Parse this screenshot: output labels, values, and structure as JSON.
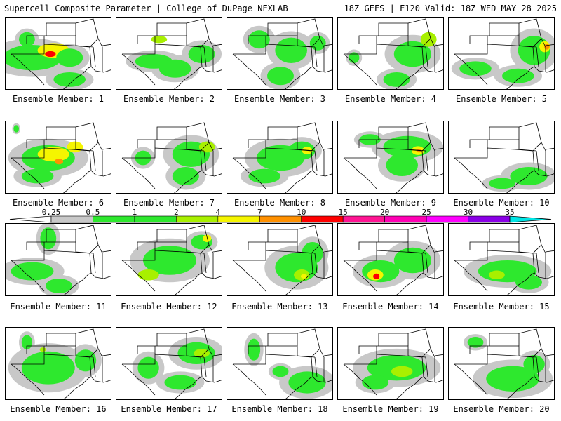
{
  "header": {
    "title": "Supercell Composite Parameter | College of DuPage NEXLAB",
    "run_info": "18Z GEFS | F120 Valid: 18Z WED MAY 28 2025"
  },
  "caption_prefix": "Ensemble Member: ",
  "members": [
    {
      "id": 1,
      "label": "Ensemble Member: 1",
      "blobs": [
        [
          0.25,
          0.55,
          0.55,
          0.35,
          "#2ee82e"
        ],
        [
          0.45,
          0.45,
          0.3,
          0.2,
          "#f5f500"
        ],
        [
          0.42,
          0.5,
          0.1,
          0.08,
          "#ff0000"
        ],
        [
          0.6,
          0.55,
          0.25,
          0.25,
          "#2ee82e"
        ],
        [
          0.2,
          0.3,
          0.15,
          0.2,
          "#2ee82e"
        ],
        [
          0.6,
          0.85,
          0.3,
          0.2,
          "#2ee82e"
        ]
      ]
    },
    {
      "id": 2,
      "label": "Ensemble Member: 2",
      "blobs": [
        [
          0.35,
          0.6,
          0.35,
          0.2,
          "#2ee82e"
        ],
        [
          0.55,
          0.7,
          0.3,
          0.25,
          "#2ee82e"
        ],
        [
          0.8,
          0.5,
          0.25,
          0.25,
          "#2ee82e"
        ],
        [
          0.4,
          0.3,
          0.15,
          0.1,
          "#a8f000"
        ]
      ]
    },
    {
      "id": 3,
      "label": "Ensemble Member: 3",
      "blobs": [
        [
          0.6,
          0.45,
          0.3,
          0.35,
          "#2ee82e"
        ],
        [
          0.5,
          0.8,
          0.25,
          0.25,
          "#2ee82e"
        ],
        [
          0.3,
          0.3,
          0.2,
          0.25,
          "#2ee82e"
        ],
        [
          0.85,
          0.35,
          0.15,
          0.2,
          "#2ee82e"
        ]
      ]
    },
    {
      "id": 4,
      "label": "Ensemble Member: 4",
      "blobs": [
        [
          0.7,
          0.5,
          0.35,
          0.35,
          "#2ee82e"
        ],
        [
          0.55,
          0.85,
          0.25,
          0.2,
          "#2ee82e"
        ],
        [
          0.85,
          0.3,
          0.15,
          0.2,
          "#a8f000"
        ],
        [
          0.15,
          0.55,
          0.1,
          0.15,
          "#2ee82e"
        ]
      ]
    },
    {
      "id": 5,
      "label": "Ensemble Member: 5",
      "blobs": [
        [
          0.8,
          0.45,
          0.3,
          0.4,
          "#2ee82e"
        ],
        [
          0.9,
          0.4,
          0.1,
          0.15,
          "#f5f500"
        ],
        [
          0.92,
          0.4,
          0.05,
          0.08,
          "#ff9000"
        ],
        [
          0.65,
          0.8,
          0.3,
          0.2,
          "#2ee82e"
        ],
        [
          0.25,
          0.7,
          0.3,
          0.2,
          "#2ee82e"
        ]
      ]
    },
    {
      "id": 6,
      "label": "Ensemble Member: 6",
      "blobs": [
        [
          0.4,
          0.5,
          0.5,
          0.35,
          "#2ee82e"
        ],
        [
          0.45,
          0.45,
          0.3,
          0.2,
          "#f5f500"
        ],
        [
          0.5,
          0.55,
          0.08,
          0.08,
          "#ff9000"
        ],
        [
          0.65,
          0.35,
          0.15,
          0.15,
          "#f5f500"
        ],
        [
          0.3,
          0.75,
          0.3,
          0.2,
          "#2ee82e"
        ],
        [
          0.1,
          0.1,
          0.05,
          0.1,
          "#2ee82e"
        ]
      ]
    },
    {
      "id": 7,
      "label": "Ensemble Member: 7",
      "blobs": [
        [
          0.7,
          0.45,
          0.35,
          0.35,
          "#2ee82e"
        ],
        [
          0.65,
          0.75,
          0.25,
          0.25,
          "#2ee82e"
        ],
        [
          0.85,
          0.35,
          0.15,
          0.15,
          "#a8f000"
        ],
        [
          0.25,
          0.5,
          0.15,
          0.2,
          "#2ee82e"
        ]
      ]
    },
    {
      "id": 8,
      "label": "Ensemble Member: 8",
      "blobs": [
        [
          0.5,
          0.5,
          0.45,
          0.35,
          "#2ee82e"
        ],
        [
          0.7,
          0.4,
          0.25,
          0.25,
          "#2ee82e"
        ],
        [
          0.75,
          0.4,
          0.1,
          0.1,
          "#f5f500"
        ],
        [
          0.35,
          0.75,
          0.3,
          0.2,
          "#2ee82e"
        ]
      ]
    },
    {
      "id": 9,
      "label": "Ensemble Member: 9",
      "blobs": [
        [
          0.65,
          0.35,
          0.45,
          0.3,
          "#2ee82e"
        ],
        [
          0.75,
          0.4,
          0.12,
          0.12,
          "#f5f500"
        ],
        [
          0.76,
          0.4,
          0.05,
          0.05,
          "#ff9000"
        ],
        [
          0.6,
          0.6,
          0.3,
          0.3,
          "#2ee82e"
        ],
        [
          0.3,
          0.25,
          0.2,
          0.15,
          "#2ee82e"
        ]
      ]
    },
    {
      "id": 10,
      "label": "Ensemble Member: 10",
      "blobs": [
        [
          0.75,
          0.75,
          0.35,
          0.25,
          "#2ee82e"
        ],
        [
          0.5,
          0.85,
          0.25,
          0.15,
          "#2ee82e"
        ]
      ]
    },
    {
      "id": 11,
      "label": "Ensemble Member: 11",
      "blobs": [
        [
          0.25,
          0.65,
          0.4,
          0.25,
          "#2ee82e"
        ],
        [
          0.4,
          0.2,
          0.15,
          0.3,
          "#2ee82e"
        ],
        [
          0.5,
          0.85,
          0.25,
          0.2,
          "#2ee82e"
        ]
      ]
    },
    {
      "id": 12,
      "label": "Ensemble Member: 12",
      "blobs": [
        [
          0.5,
          0.5,
          0.5,
          0.4,
          "#2ee82e"
        ],
        [
          0.8,
          0.25,
          0.2,
          0.2,
          "#2ee82e"
        ],
        [
          0.85,
          0.2,
          0.08,
          0.1,
          "#f5f500"
        ],
        [
          0.3,
          0.7,
          0.2,
          0.15,
          "#a8f000"
        ]
      ]
    },
    {
      "id": 13,
      "label": "Ensemble Member: 13",
      "blobs": [
        [
          0.65,
          0.6,
          0.4,
          0.4,
          "#2ee82e"
        ],
        [
          0.7,
          0.7,
          0.15,
          0.15,
          "#a8f000"
        ],
        [
          0.72,
          0.72,
          0.06,
          0.06,
          "#f5f500"
        ],
        [
          0.8,
          0.4,
          0.2,
          0.3,
          "#2ee82e"
        ]
      ]
    },
    {
      "id": 14,
      "label": "Ensemble Member: 14",
      "blobs": [
        [
          0.4,
          0.65,
          0.35,
          0.3,
          "#2ee82e"
        ],
        [
          0.35,
          0.7,
          0.15,
          0.15,
          "#f5f500"
        ],
        [
          0.36,
          0.72,
          0.06,
          0.08,
          "#ff0000"
        ],
        [
          0.7,
          0.5,
          0.35,
          0.35,
          "#2ee82e"
        ]
      ]
    },
    {
      "id": 15,
      "label": "Ensemble Member: 15",
      "blobs": [
        [
          0.55,
          0.65,
          0.55,
          0.3,
          "#2ee82e"
        ],
        [
          0.45,
          0.7,
          0.15,
          0.12,
          "#a8f000"
        ],
        [
          0.75,
          0.8,
          0.25,
          0.2,
          "#2ee82e"
        ]
      ]
    },
    {
      "id": 16,
      "label": "Ensemble Member: 16",
      "blobs": [
        [
          0.4,
          0.55,
          0.5,
          0.45,
          "#2ee82e"
        ],
        [
          0.75,
          0.45,
          0.2,
          0.3,
          "#2ee82e"
        ],
        [
          0.2,
          0.2,
          0.1,
          0.2,
          "#2ee82e"
        ],
        [
          0.35,
          0.3,
          0.06,
          0.06,
          "#a8f000"
        ]
      ]
    },
    {
      "id": 17,
      "label": "Ensemble Member: 17",
      "blobs": [
        [
          0.75,
          0.35,
          0.35,
          0.3,
          "#2ee82e"
        ],
        [
          0.8,
          0.35,
          0.15,
          0.12,
          "#a8f000"
        ],
        [
          0.3,
          0.55,
          0.2,
          0.3,
          "#2ee82e"
        ],
        [
          0.6,
          0.75,
          0.3,
          0.2,
          "#2ee82e"
        ]
      ]
    },
    {
      "id": 18,
      "label": "Ensemble Member: 18",
      "blobs": [
        [
          0.75,
          0.75,
          0.35,
          0.3,
          "#2ee82e"
        ],
        [
          0.25,
          0.3,
          0.12,
          0.3,
          "#2ee82e"
        ],
        [
          0.5,
          0.6,
          0.15,
          0.15,
          "#2ee82e"
        ]
      ]
    },
    {
      "id": 19,
      "label": "Ensemble Member: 19",
      "blobs": [
        [
          0.55,
          0.55,
          0.55,
          0.35,
          "#2ee82e"
        ],
        [
          0.6,
          0.6,
          0.2,
          0.15,
          "#a8f000"
        ],
        [
          0.35,
          0.75,
          0.25,
          0.2,
          "#2ee82e"
        ]
      ]
    },
    {
      "id": 20,
      "label": "Ensemble Member: 20",
      "blobs": [
        [
          0.6,
          0.7,
          0.5,
          0.35,
          "#2ee82e"
        ],
        [
          0.25,
          0.2,
          0.15,
          0.15,
          "#2ee82e"
        ],
        [
          0.8,
          0.5,
          0.2,
          0.25,
          "#2ee82e"
        ]
      ]
    }
  ],
  "colorbar": {
    "labels": [
      "0.25",
      "0.5",
      "1",
      "2",
      "4",
      "7",
      "10",
      "15",
      "20",
      "25",
      "30",
      "35"
    ],
    "colors": [
      "#c8c8c8",
      "#2ee82e",
      "#2ee82e",
      "#a8f000",
      "#f5f500",
      "#ff9000",
      "#ff0000",
      "#ff1493",
      "#ff00b4",
      "#ff00ff",
      "#8a00e6",
      "#a860e6",
      "#00e6e6"
    ]
  },
  "map_colors": {
    "shading_light": "#c8c8c8",
    "border": "#000000"
  }
}
